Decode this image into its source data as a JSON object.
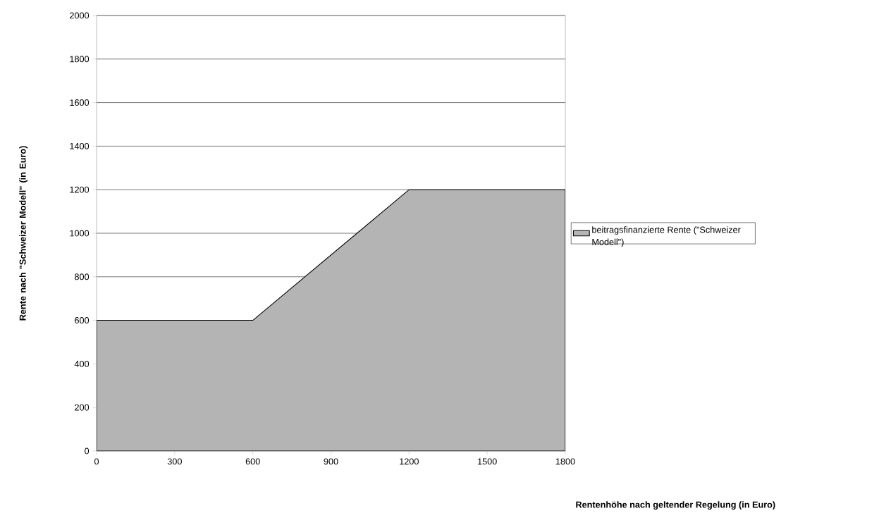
{
  "chart_data": {
    "type": "area",
    "xlabel": "Rentenhöhe nach geltender Regelung (in Euro)",
    "ylabel": "Rente nach \"Schweizer Modell\" (in Euro)",
    "x": [
      0,
      600,
      1200,
      1800
    ],
    "series": [
      {
        "name": "beitragsfinanzierte Rente (\"Schweizer Modell\")",
        "color": "#b4b4b4",
        "values": [
          600,
          600,
          1200,
          1200
        ]
      }
    ],
    "xlim": [
      0,
      1800
    ],
    "ylim": [
      0,
      2000
    ],
    "xticks": [
      0,
      300,
      600,
      900,
      1200,
      1500,
      1800
    ],
    "yticks": [
      0,
      200,
      400,
      600,
      800,
      1000,
      1200,
      1400,
      1600,
      1800,
      2000
    ],
    "grid": "y",
    "legend": "right"
  }
}
